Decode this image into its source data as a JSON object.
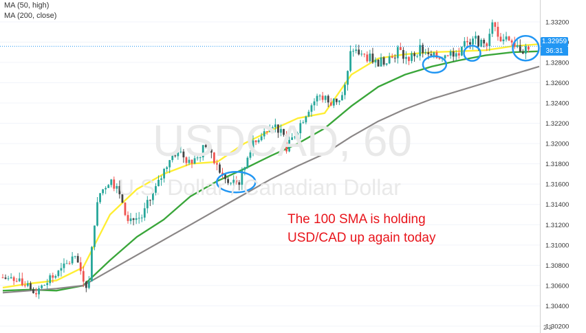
{
  "watermark": {
    "symbol": "USDCAD, 60",
    "name": "U.S. Dollar / Canadian Dollar"
  },
  "legend": {
    "ma50": "MA (50, high)",
    "ma200": "MA (200, close)"
  },
  "annotation": {
    "line1": "The 100 SMA is holding",
    "line2": "USD/CAD up again today"
  },
  "price_tag": {
    "price": "1.32959",
    "countdown": "36:31"
  },
  "corner_label": "2 3",
  "colors": {
    "candle_up": "#26a69a",
    "candle_down": "#ef5350",
    "candle_dark": "#444444",
    "ma50": "#ffee33",
    "ma100": "#3aa63a",
    "ma200": "#8a8686",
    "circle": "#2196f3",
    "annotation": "#e8141b",
    "price_line": "#2196f3"
  },
  "chart_data": {
    "type": "line",
    "title": "USDCAD, 60",
    "subtitle": "U.S. Dollar / Canadian Dollar",
    "y_ticks": [
      "1.33200",
      "1.33000",
      "1.32800",
      "1.32600",
      "1.32400",
      "1.32200",
      "1.32000",
      "1.31800",
      "1.31600",
      "1.31400",
      "1.31200",
      "1.31000",
      "1.30800",
      "1.30600",
      "1.30400",
      "1.30200"
    ],
    "y_range": [
      1.302,
      1.3332
    ],
    "x": [
      0,
      5,
      10,
      15,
      20,
      25,
      30,
      35,
      40,
      45,
      50,
      55,
      60,
      65,
      70,
      75,
      80,
      85,
      90,
      95,
      100
    ],
    "series": [
      {
        "name": "MA (50, high)",
        "color": "#ffee33",
        "values": [
          1.3058,
          1.3062,
          1.3065,
          1.3078,
          1.313,
          1.3155,
          1.317,
          1.318,
          1.3182,
          1.32,
          1.3213,
          1.3225,
          1.323,
          1.3268,
          1.3284,
          1.3288,
          1.329,
          1.3291,
          1.3292,
          1.3296,
          1.3298
        ]
      },
      {
        "name": "",
        "color": "#3aa63a",
        "values": [
          1.3055,
          1.3056,
          1.3055,
          1.306,
          1.3085,
          1.3108,
          1.3125,
          1.3148,
          1.3163,
          1.3175,
          1.3188,
          1.32,
          1.3215,
          1.3237,
          1.3256,
          1.3268,
          1.3276,
          1.3282,
          1.3287,
          1.329,
          1.3291
        ]
      },
      {
        "name": "MA (200, close)",
        "color": "#8a8686",
        "values": [
          1.3053,
          1.3055,
          1.3057,
          1.306,
          1.3075,
          1.309,
          1.3105,
          1.312,
          1.3135,
          1.315,
          1.3165,
          1.3178,
          1.319,
          1.3207,
          1.3222,
          1.3234,
          1.3244,
          1.3252,
          1.326,
          1.3268,
          1.3276
        ]
      }
    ],
    "price_path": [
      [
        0,
        1.3068
      ],
      [
        3,
        1.3063
      ],
      [
        6,
        1.3053
      ],
      [
        8,
        1.3062
      ],
      [
        11,
        1.3075
      ],
      [
        13,
        1.3087
      ],
      [
        14,
        1.3082
      ],
      [
        15,
        1.3068
      ],
      [
        16,
        1.3058
      ],
      [
        17,
        1.312
      ],
      [
        18,
        1.315
      ],
      [
        20,
        1.3165
      ],
      [
        22,
        1.315
      ],
      [
        23,
        1.313
      ],
      [
        24,
        1.3125
      ],
      [
        26,
        1.3128
      ],
      [
        27,
        1.314
      ],
      [
        29,
        1.316
      ],
      [
        31,
        1.3185
      ],
      [
        33,
        1.3195
      ],
      [
        34,
        1.3185
      ],
      [
        36,
        1.3185
      ],
      [
        38,
        1.32
      ],
      [
        39,
        1.3185
      ],
      [
        41,
        1.3168
      ],
      [
        42,
        1.316
      ],
      [
        44,
        1.3162
      ],
      [
        45,
        1.3175
      ],
      [
        46,
        1.3195
      ],
      [
        48,
        1.3205
      ],
      [
        50,
        1.3222
      ],
      [
        52,
        1.321
      ],
      [
        53,
        1.3195
      ],
      [
        55,
        1.3215
      ],
      [
        57,
        1.3235
      ],
      [
        59,
        1.3248
      ],
      [
        61,
        1.324
      ],
      [
        63,
        1.3245
      ],
      [
        64,
        1.3258
      ],
      [
        65,
        1.3295
      ],
      [
        66,
        1.329
      ],
      [
        68,
        1.3285
      ],
      [
        70,
        1.328
      ],
      [
        72,
        1.3285
      ],
      [
        74,
        1.3292
      ],
      [
        75,
        1.3282
      ],
      [
        76,
        1.3285
      ],
      [
        78,
        1.3295
      ],
      [
        79,
        1.3285
      ],
      [
        81,
        1.3285
      ],
      [
        83,
        1.329
      ],
      [
        85,
        1.329
      ],
      [
        86,
        1.33
      ],
      [
        87,
        1.3295
      ],
      [
        88,
        1.3305
      ],
      [
        89,
        1.3298
      ],
      [
        90,
        1.3295
      ],
      [
        91,
        1.3318
      ],
      [
        92,
        1.3312
      ],
      [
        93,
        1.3302
      ],
      [
        94,
        1.3306
      ],
      [
        95,
        1.33
      ],
      [
        96,
        1.3295
      ],
      [
        97,
        1.3293
      ],
      [
        98,
        1.3296
      ]
    ],
    "current_price": 1.32959,
    "circles": [
      {
        "x": 43.5,
        "y": 1.3162
      },
      {
        "x": 80.5,
        "y": 1.3278
      },
      {
        "x": 87.5,
        "y": 1.3289
      },
      {
        "x": 97.5,
        "y": 1.3294
      }
    ],
    "grid": true
  }
}
